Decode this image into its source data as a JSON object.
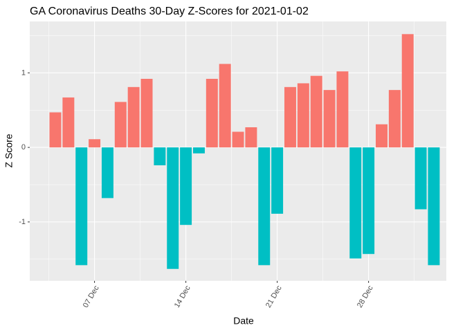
{
  "chart_data": {
    "type": "bar",
    "title": "GA Coronavirus Deaths 30-Day Z-Scores for 2021-01-02",
    "x_label": "Date",
    "y_label": "Z Score",
    "categories": [
      null,
      null,
      null,
      "07 Dec",
      null,
      null,
      null,
      null,
      null,
      null,
      "14 Dec",
      null,
      null,
      null,
      null,
      null,
      null,
      "21 Dec",
      null,
      null,
      null,
      null,
      null,
      null,
      "28 Dec",
      null,
      null,
      null,
      null,
      null
    ],
    "values": [
      0.47,
      0.67,
      -1.58,
      0.11,
      -0.68,
      0.61,
      0.81,
      0.92,
      -0.24,
      -1.63,
      -1.04,
      -0.08,
      0.92,
      1.12,
      0.21,
      0.27,
      -1.58,
      -0.89,
      0.81,
      0.86,
      0.96,
      0.77,
      1.02,
      -1.49,
      -1.43,
      0.31,
      0.77,
      1.52,
      -0.83,
      -1.58
    ],
    "positive_color": "#F8766D",
    "negative_color": "#00BFC4",
    "ylim": [
      -1.79,
      1.69
    ],
    "yticks": [
      -1,
      0,
      1
    ],
    "grid": true
  }
}
